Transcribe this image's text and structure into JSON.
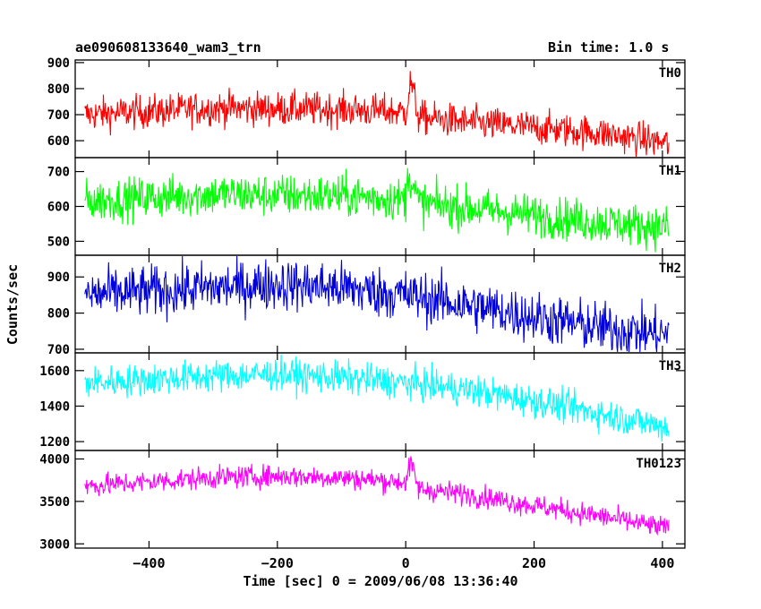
{
  "header": {
    "title": "ae090608133640_wam3_trn",
    "bin_time": "Bin time: 1.0 s"
  },
  "axes": {
    "xlabel": "Time [sec] 0 = 2009/06/08 13:36:40",
    "ylabel": "Counts/sec"
  },
  "chart_data": {
    "type": "line",
    "title": "ae090608133640_wam3_trn",
    "subtitle": "Bin time: 1.0 s",
    "xlabel": "Time [sec] 0 = 2009/06/08 13:36:40",
    "ylabel": "Counts/sec",
    "xlim": [
      -515,
      435
    ],
    "x_range_data": [
      -500,
      410
    ],
    "x_ticks": [
      -400,
      -200,
      0,
      200,
      400
    ],
    "x_tick_labels": [
      "−400",
      "−200",
      "0",
      "200",
      "400"
    ],
    "grid": false,
    "legend": "none",
    "series": [
      {
        "name": "TH0",
        "color": "#ff0000",
        "ylim": [
          535,
          910
        ],
        "y_ticks": [
          600,
          700,
          800,
          900
        ],
        "y_tick_labels": [
          "600",
          "700",
          "800",
          "900"
        ],
        "trend_x": [
          -500,
          -300,
          -100,
          0,
          8,
          20,
          100,
          200,
          300,
          410
        ],
        "trend_y": [
          700,
          725,
          720,
          710,
          830,
          690,
          670,
          650,
          630,
          590
        ],
        "noise": 32
      },
      {
        "name": "TH1",
        "color": "#00ff00",
        "ylim": [
          460,
          740
        ],
        "y_ticks": [
          500,
          600,
          700
        ],
        "y_tick_labels": [
          "500",
          "600",
          "700"
        ],
        "trend_x": [
          -500,
          -300,
          -100,
          0,
          5,
          20,
          100,
          200,
          300,
          410
        ],
        "trend_y": [
          615,
          635,
          630,
          620,
          700,
          610,
          595,
          575,
          555,
          540
        ],
        "noise": 30
      },
      {
        "name": "TH2",
        "color": "#0000dd",
        "ylim": [
          690,
          960
        ],
        "y_ticks": [
          700,
          800,
          900
        ],
        "y_tick_labels": [
          "700",
          "800",
          "900"
        ],
        "trend_x": [
          -500,
          -300,
          -200,
          -100,
          0,
          100,
          200,
          300,
          410
        ],
        "trend_y": [
          850,
          870,
          880,
          870,
          850,
          820,
          790,
          760,
          740
        ],
        "noise": 35
      },
      {
        "name": "TH3",
        "color": "#00ffff",
        "ylim": [
          1150,
          1700
        ],
        "y_ticks": [
          1200,
          1400,
          1600
        ],
        "y_tick_labels": [
          "1200",
          "1400",
          "1600"
        ],
        "trend_x": [
          -500,
          -300,
          -200,
          -100,
          0,
          100,
          200,
          300,
          410
        ],
        "trend_y": [
          1530,
          1570,
          1580,
          1560,
          1530,
          1490,
          1430,
          1360,
          1280
        ],
        "noise": 45
      },
      {
        "name": "TH0123",
        "color": "#ff00ff",
        "ylim": [
          2950,
          4100
        ],
        "y_ticks": [
          3000,
          3500,
          4000
        ],
        "y_tick_labels": [
          "3000",
          "3500",
          "4000"
        ],
        "trend_x": [
          -500,
          -300,
          -200,
          -100,
          0,
          8,
          20,
          100,
          200,
          300,
          410
        ],
        "trend_y": [
          3680,
          3780,
          3800,
          3780,
          3730,
          3950,
          3650,
          3580,
          3450,
          3330,
          3180
        ],
        "noise": 65
      }
    ]
  }
}
